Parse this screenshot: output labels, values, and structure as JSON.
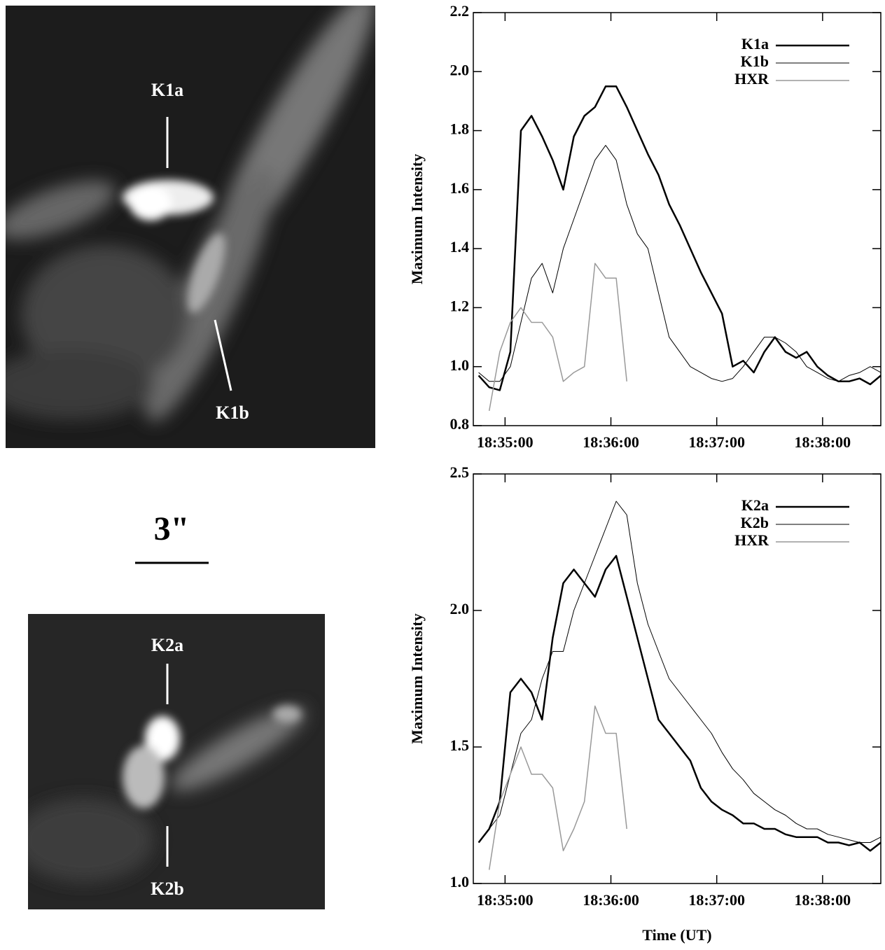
{
  "chart_data": [
    {
      "type": "line",
      "ylabel": "Maximum Intensity",
      "x": [
        66885,
        66891,
        66897,
        66903,
        66909,
        66915,
        66921,
        66927,
        66933,
        66939,
        66945,
        66951,
        66957,
        66963,
        66969,
        66975,
        66981,
        66987,
        66993,
        66999,
        67005,
        67011,
        67017,
        67023,
        67029,
        67035,
        67041,
        67047,
        67053,
        67059,
        67065,
        67071,
        67077,
        67083,
        67089,
        67095,
        67101,
        67107,
        67113
      ],
      "xlim": [
        66882,
        67113
      ],
      "xticks": [
        {
          "value": 66900,
          "label": "18:35:00"
        },
        {
          "value": 66960,
          "label": "18:36:00"
        },
        {
          "value": 67020,
          "label": "18:37:00"
        },
        {
          "value": 67080,
          "label": "18:38:00"
        }
      ],
      "ylim": [
        0.8,
        2.2
      ],
      "yticks": [
        0.8,
        {
          "value": 1,
          "label": "1.0"
        },
        1.2,
        1.4,
        1.6,
        1.8,
        {
          "value": 2,
          "label": "2.0"
        },
        2.2
      ],
      "legend": "upper right",
      "series": [
        {
          "name": "K1a",
          "color": "#000000",
          "linewidth": 2.5,
          "values": [
            0.97,
            0.93,
            0.92,
            1.05,
            1.8,
            1.85,
            1.78,
            1.7,
            1.6,
            1.78,
            1.85,
            1.88,
            1.95,
            1.95,
            1.88,
            1.8,
            1.72,
            1.65,
            1.55,
            1.48,
            1.4,
            1.32,
            1.25,
            1.18,
            1.0,
            1.02,
            0.98,
            1.05,
            1.1,
            1.05,
            1.03,
            1.05,
            1.0,
            0.97,
            0.95,
            0.95,
            0.96,
            0.94,
            0.97
          ]
        },
        {
          "name": "K1b",
          "color": "#000000",
          "linewidth": 1,
          "values": [
            0.98,
            0.95,
            0.95,
            1.0,
            1.15,
            1.3,
            1.35,
            1.25,
            1.4,
            1.5,
            1.6,
            1.7,
            1.75,
            1.7,
            1.55,
            1.45,
            1.4,
            1.25,
            1.1,
            1.05,
            1.0,
            0.98,
            0.96,
            0.95,
            0.96,
            1.0,
            1.05,
            1.1,
            1.1,
            1.08,
            1.05,
            1.0,
            0.98,
            0.96,
            0.95,
            0.97,
            0.98,
            1.0,
            0.98
          ]
        },
        {
          "name": "HXR",
          "color": "#999999",
          "linewidth": 1.5,
          "values": [
            null,
            0.85,
            1.05,
            1.15,
            1.2,
            1.15,
            1.15,
            1.1,
            0.95,
            0.98,
            1.0,
            1.35,
            1.3,
            1.3,
            0.95,
            null,
            null,
            null,
            null,
            null,
            null,
            null,
            null,
            null,
            null,
            null,
            null,
            null,
            null,
            null,
            null,
            null,
            null,
            null,
            null,
            null,
            null,
            null,
            null
          ]
        }
      ]
    },
    {
      "type": "line",
      "ylabel": "Maximum Intensity",
      "xlabel": "Time (UT)",
      "x": [
        66885,
        66891,
        66897,
        66903,
        66909,
        66915,
        66921,
        66927,
        66933,
        66939,
        66945,
        66951,
        66957,
        66963,
        66969,
        66975,
        66981,
        66987,
        66993,
        66999,
        67005,
        67011,
        67017,
        67023,
        67029,
        67035,
        67041,
        67047,
        67053,
        67059,
        67065,
        67071,
        67077,
        67083,
        67089,
        67095,
        67101,
        67107,
        67113
      ],
      "xlim": [
        66882,
        67113
      ],
      "xticks": [
        {
          "value": 66900,
          "label": "18:35:00"
        },
        {
          "value": 66960,
          "label": "18:36:00"
        },
        {
          "value": 67020,
          "label": "18:37:00"
        },
        {
          "value": 67080,
          "label": "18:38:00"
        }
      ],
      "ylim": [
        1,
        2.5
      ],
      "yticks": [
        {
          "value": 1,
          "label": "1.0"
        },
        1.5,
        {
          "value": 2,
          "label": "2.0"
        },
        2.5
      ],
      "legend": "upper right",
      "series": [
        {
          "name": "K2a",
          "color": "#000000",
          "linewidth": 2.5,
          "values": [
            1.15,
            1.2,
            1.3,
            1.7,
            1.75,
            1.7,
            1.6,
            1.9,
            2.1,
            2.15,
            2.1,
            2.05,
            2.15,
            2.2,
            2.05,
            1.9,
            1.75,
            1.6,
            1.55,
            1.5,
            1.45,
            1.35,
            1.3,
            1.27,
            1.25,
            1.22,
            1.22,
            1.2,
            1.2,
            1.18,
            1.17,
            1.17,
            1.17,
            1.15,
            1.15,
            1.14,
            1.15,
            1.12,
            1.15
          ]
        },
        {
          "name": "K2b",
          "color": "#000000",
          "linewidth": 1,
          "values": [
            1.15,
            1.2,
            1.25,
            1.4,
            1.55,
            1.6,
            1.75,
            1.85,
            1.85,
            2.0,
            2.1,
            2.2,
            2.3,
            2.4,
            2.35,
            2.1,
            1.95,
            1.85,
            1.75,
            1.7,
            1.65,
            1.6,
            1.55,
            1.48,
            1.42,
            1.38,
            1.33,
            1.3,
            1.27,
            1.25,
            1.22,
            1.2,
            1.2,
            1.18,
            1.17,
            1.16,
            1.15,
            1.15,
            1.17
          ]
        },
        {
          "name": "HXR",
          "color": "#999999",
          "linewidth": 1.5,
          "values": [
            null,
            1.05,
            1.3,
            1.4,
            1.5,
            1.4,
            1.4,
            1.35,
            1.12,
            1.2,
            1.3,
            1.65,
            1.55,
            1.55,
            1.2,
            null,
            null,
            null,
            null,
            null,
            null,
            null,
            null,
            null,
            null,
            null,
            null,
            null,
            null,
            null,
            null,
            null,
            null,
            null,
            null,
            null,
            null,
            null,
            null
          ]
        }
      ]
    }
  ],
  "images": [
    {
      "labels": [
        "K1a",
        "K1b"
      ]
    },
    {
      "labels": [
        "K2a",
        "K2b"
      ]
    }
  ],
  "scale_bar": "3\""
}
